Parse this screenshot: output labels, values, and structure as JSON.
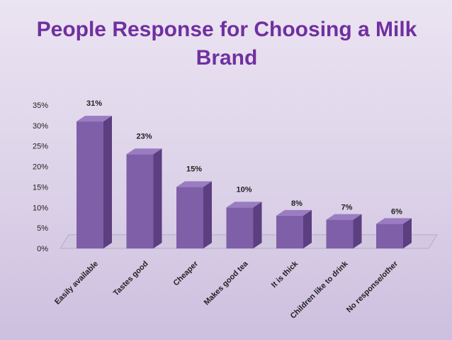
{
  "chart_data": {
    "type": "bar",
    "title": "People Response for Choosing a Milk Brand",
    "categories": [
      "Easily available",
      "Tastes good",
      "Cheaper",
      "Makes good tea",
      "It is thick",
      "Children like to drink",
      "No response/other"
    ],
    "values": [
      31,
      23,
      15,
      10,
      8,
      7,
      6
    ],
    "data_labels": [
      "31%",
      "23%",
      "15%",
      "10%",
      "8%",
      "7%",
      "6%"
    ],
    "ylim": [
      0,
      35
    ],
    "yticks": [
      "0%",
      "5%",
      "10%",
      "15%",
      "20%",
      "25%",
      "30%",
      "35%"
    ],
    "xlabel": "",
    "ylabel": "",
    "legend": "none",
    "colors": {
      "bar_front": "#7f5fa8",
      "bar_side": "#5b3f80",
      "bar_top": "#9a7cc2",
      "title": "#7030a0"
    }
  }
}
